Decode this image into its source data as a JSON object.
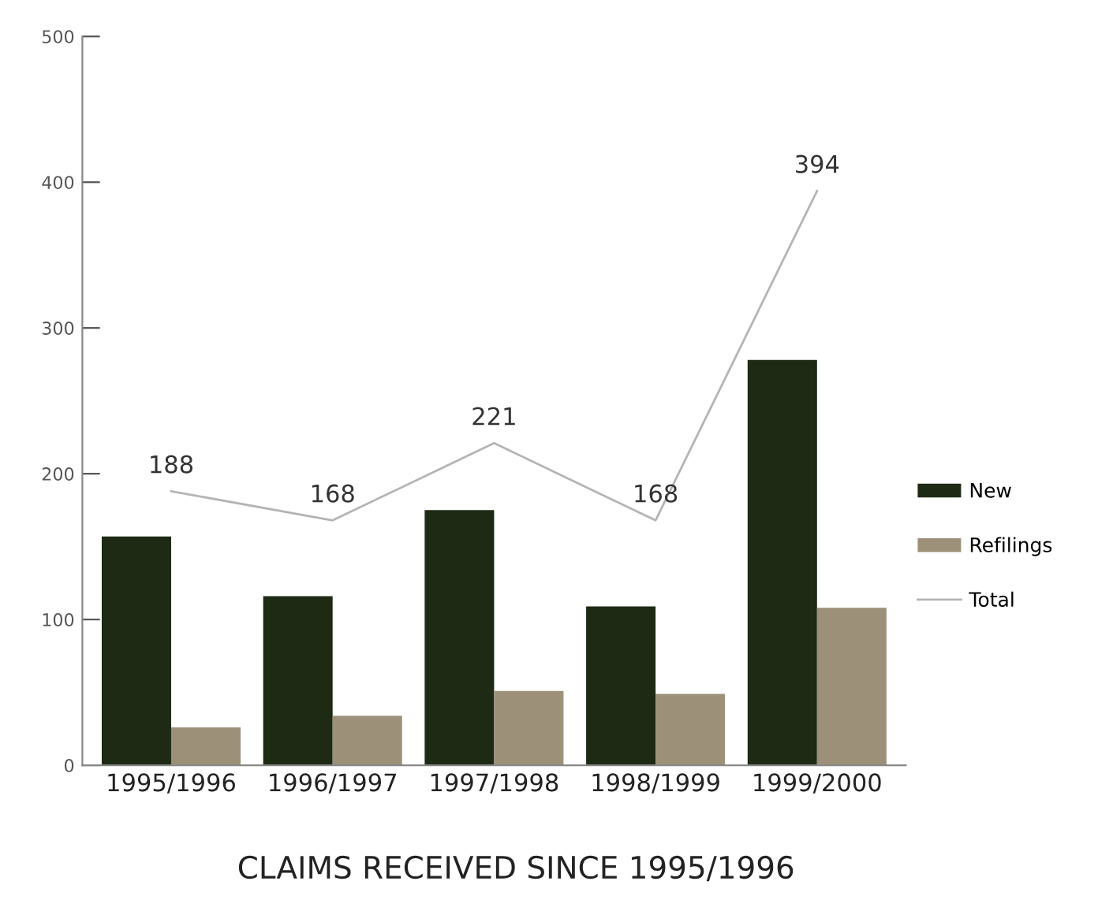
{
  "chart_data": {
    "type": "bar",
    "title": "CLAIMS RECEIVED SINCE 1995/1996",
    "categories": [
      "1995/1996",
      "1996/1997",
      "1997/1998",
      "1998/1999",
      "1999/2000"
    ],
    "series": [
      {
        "name": "New",
        "color": "#1e2a14",
        "values": [
          157,
          116,
          175,
          109,
          278
        ]
      },
      {
        "name": "Refilings",
        "color": "#9c9178",
        "values": [
          26,
          34,
          51,
          49,
          108
        ]
      },
      {
        "name": "Total",
        "type": "line",
        "color": "#b4b4b4",
        "values": [
          188,
          168,
          221,
          168,
          394
        ],
        "data_labels": true
      }
    ],
    "ylim": [
      0,
      500
    ],
    "yticks": [
      0,
      100,
      200,
      300,
      400,
      500
    ],
    "grid": false,
    "legend": "right"
  }
}
